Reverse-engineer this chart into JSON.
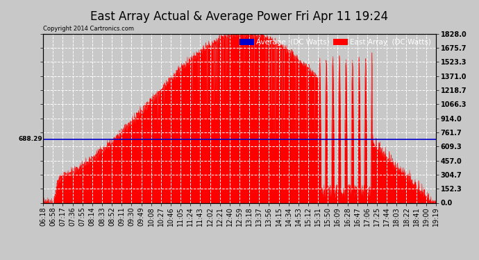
{
  "title": "East Array Actual & Average Power Fri Apr 11 19:24",
  "copyright": "Copyright 2014 Cartronics.com",
  "ylabel_right": [
    "1828.0",
    "1675.7",
    "1523.3",
    "1371.0",
    "1218.7",
    "1066.3",
    "914.0",
    "761.7",
    "609.3",
    "457.0",
    "304.7",
    "152.3",
    "0.0"
  ],
  "ytick_values": [
    1828.0,
    1675.7,
    1523.3,
    1371.0,
    1218.7,
    1066.3,
    914.0,
    761.7,
    609.3,
    457.0,
    304.7,
    152.3,
    0.0
  ],
  "ymax": 1828.0,
  "ymin": 0.0,
  "average_line_y": 688.29,
  "average_label": "688.29",
  "bg_color": "#c8c8c8",
  "plot_bg_color": "#c8c8c8",
  "fill_color": "#ff0000",
  "line_color": "#0000cc",
  "legend_avg_bg": "#0000cc",
  "legend_east_bg": "#ff0000",
  "xtick_labels": [
    "06:18",
    "06:58",
    "07:17",
    "07:36",
    "07:55",
    "08:14",
    "08:33",
    "08:52",
    "09:11",
    "09:30",
    "09:49",
    "10:08",
    "10:27",
    "10:46",
    "11:05",
    "11:24",
    "11:43",
    "12:02",
    "12:21",
    "12:40",
    "12:59",
    "13:18",
    "13:37",
    "13:56",
    "14:15",
    "14:34",
    "14:53",
    "15:12",
    "15:31",
    "15:50",
    "16:09",
    "16:28",
    "16:47",
    "17:06",
    "17:25",
    "17:44",
    "18:03",
    "18:22",
    "18:41",
    "19:00",
    "19:19"
  ],
  "title_fontsize": 12,
  "tick_fontsize": 7,
  "grid_color": "#ffffff",
  "grid_linestyle": "--",
  "legend_fontsize": 7.5
}
